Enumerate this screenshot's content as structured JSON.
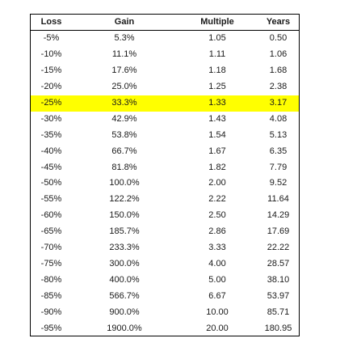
{
  "table": {
    "headers": {
      "loss": "Loss",
      "gain": "Gain",
      "multiple": "Multiple",
      "years": "Years"
    },
    "highlight_color": "#ffff00",
    "highlighted_row_index": 4,
    "rows": [
      {
        "loss": "-5%",
        "gain": "5.3%",
        "multiple": "1.05",
        "years": "0.50"
      },
      {
        "loss": "-10%",
        "gain": "11.1%",
        "multiple": "1.11",
        "years": "1.06"
      },
      {
        "loss": "-15%",
        "gain": "17.6%",
        "multiple": "1.18",
        "years": "1.68"
      },
      {
        "loss": "-20%",
        "gain": "25.0%",
        "multiple": "1.25",
        "years": "2.38"
      },
      {
        "loss": "-25%",
        "gain": "33.3%",
        "multiple": "1.33",
        "years": "3.17"
      },
      {
        "loss": "-30%",
        "gain": "42.9%",
        "multiple": "1.43",
        "years": "4.08"
      },
      {
        "loss": "-35%",
        "gain": "53.8%",
        "multiple": "1.54",
        "years": "5.13"
      },
      {
        "loss": "-40%",
        "gain": "66.7%",
        "multiple": "1.67",
        "years": "6.35"
      },
      {
        "loss": "-45%",
        "gain": "81.8%",
        "multiple": "1.82",
        "years": "7.79"
      },
      {
        "loss": "-50%",
        "gain": "100.0%",
        "multiple": "2.00",
        "years": "9.52"
      },
      {
        "loss": "-55%",
        "gain": "122.2%",
        "multiple": "2.22",
        "years": "11.64"
      },
      {
        "loss": "-60%",
        "gain": "150.0%",
        "multiple": "2.50",
        "years": "14.29"
      },
      {
        "loss": "-65%",
        "gain": "185.7%",
        "multiple": "2.86",
        "years": "17.69"
      },
      {
        "loss": "-70%",
        "gain": "233.3%",
        "multiple": "3.33",
        "years": "22.22"
      },
      {
        "loss": "-75%",
        "gain": "300.0%",
        "multiple": "4.00",
        "years": "28.57"
      },
      {
        "loss": "-80%",
        "gain": "400.0%",
        "multiple": "5.00",
        "years": "38.10"
      },
      {
        "loss": "-85%",
        "gain": "566.7%",
        "multiple": "6.67",
        "years": "53.97"
      },
      {
        "loss": "-90%",
        "gain": "900.0%",
        "multiple": "10.00",
        "years": "85.71"
      },
      {
        "loss": "-95%",
        "gain": "1900.0%",
        "multiple": "20.00",
        "years": "180.95"
      }
    ]
  }
}
